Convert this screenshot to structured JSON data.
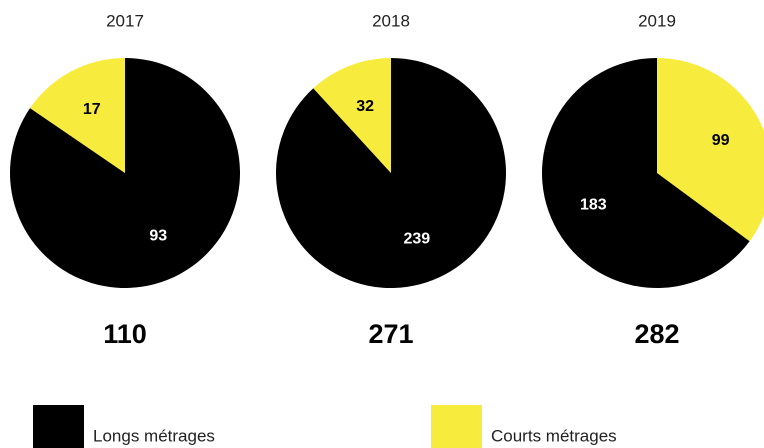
{
  "chart_data": [
    {
      "type": "pie",
      "title": "2017",
      "values": [
        93,
        17
      ],
      "colors": [
        "#000000",
        "#f7ec3d"
      ],
      "total": 110
    },
    {
      "type": "pie",
      "title": "2018",
      "values": [
        239,
        32
      ],
      "colors": [
        "#000000",
        "#f7ec3d"
      ],
      "total": 271
    },
    {
      "type": "pie",
      "title": "2019",
      "values": [
        99,
        183
      ],
      "colors": [
        "#f7ec3d",
        "#000000"
      ],
      "total": 282
    }
  ],
  "legend": {
    "labels": [
      "Longs métrages",
      "Courts métrages"
    ],
    "colors": [
      "#000000",
      "#f7ec3d"
    ]
  }
}
